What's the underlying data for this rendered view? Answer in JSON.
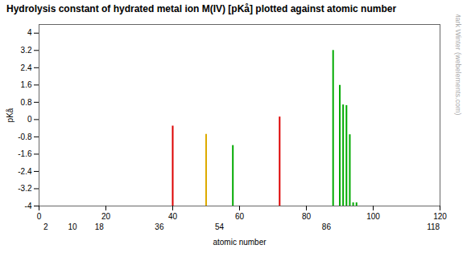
{
  "chart_data": {
    "type": "bar",
    "title": "Hydrolysis constant of hydrated metal ion M(IV) [pKå] plotted against atomic number",
    "xlabel": "atomic number",
    "ylabel": "pKå",
    "x": [
      40,
      50,
      58,
      72,
      88,
      90,
      91,
      92,
      93,
      94,
      95
    ],
    "values": [
      -0.3,
      -0.68,
      -1.2,
      0.12,
      3.2,
      1.58,
      0.68,
      0.65,
      -0.7,
      -3.85,
      -3.85
    ],
    "colors": [
      "#dd0000",
      "#ddaa00",
      "#00aa00",
      "#dd0000",
      "#00aa00",
      "#00aa00",
      "#00aa00",
      "#00aa00",
      "#00aa00",
      "#00aa00",
      "#00aa00"
    ],
    "xlim": [
      0,
      120
    ],
    "ylim": [
      -4,
      4.4
    ],
    "xticks": [
      0,
      20,
      40,
      60,
      80,
      100,
      120
    ],
    "yticks": [
      -4,
      -3.2,
      -2.4,
      -1.6,
      -0.8,
      0,
      0.8,
      1.6,
      2.4,
      3.2,
      4
    ],
    "grid": false,
    "annotations": [
      {
        "text": "2",
        "x": 2
      },
      {
        "text": "10",
        "x": 10
      },
      {
        "text": "18",
        "x": 18
      },
      {
        "text": "36",
        "x": 36
      },
      {
        "text": "54",
        "x": 54
      },
      {
        "text": "86",
        "x": 86
      },
      {
        "text": "118",
        "x": 118
      },
      {
        "text": "© Mark Winter (webelements.com)"
      }
    ]
  }
}
